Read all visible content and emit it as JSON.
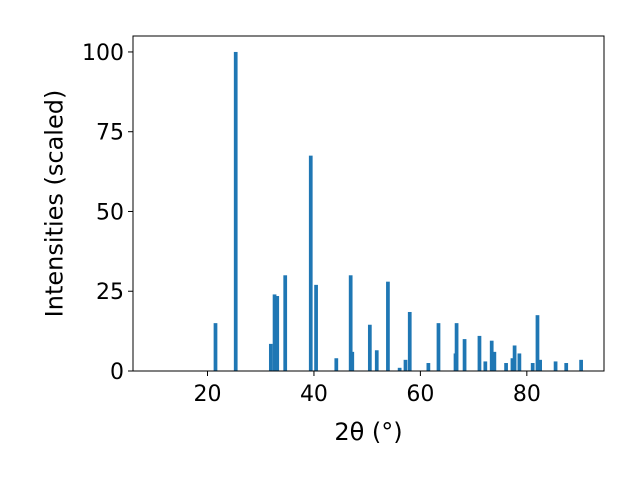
{
  "chart_data": {
    "type": "bar",
    "title": "",
    "xlabel": "2θ (°)",
    "ylabel": "Intensities (scaled)",
    "xlim": [
      6.0,
      94.5
    ],
    "ylim": [
      0,
      105
    ],
    "xticks": [
      20,
      40,
      60,
      80
    ],
    "yticks": [
      0,
      25,
      50,
      75,
      100
    ],
    "grid": false,
    "bar_width": 0.7,
    "bar_color": "#1f77b4",
    "x": [
      21.5,
      25.3,
      31.9,
      32.6,
      33.1,
      34.6,
      39.4,
      40.4,
      44.2,
      46.9,
      47.2,
      50.5,
      51.8,
      53.9,
      56.1,
      57.2,
      58.0,
      61.5,
      63.4,
      66.6,
      66.8,
      68.3,
      71.1,
      72.2,
      73.4,
      73.9,
      76.1,
      77.3,
      77.7,
      78.6,
      81.1,
      82.0,
      82.5,
      85.4,
      87.4,
      90.2
    ],
    "values": [
      15,
      100,
      8.5,
      24,
      23.5,
      30,
      67.5,
      27,
      4,
      30,
      6,
      14.5,
      6.5,
      28,
      1,
      3.5,
      18.5,
      2.5,
      15,
      5.5,
      15,
      10,
      11,
      3,
      9.5,
      6,
      2.5,
      4,
      8,
      5.5,
      2.5,
      17.5,
      3.5,
      3,
      2.5,
      3.5
    ]
  }
}
